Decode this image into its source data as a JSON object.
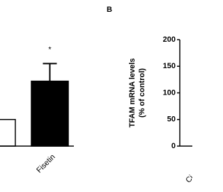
{
  "chart_data": [
    {
      "type": "bar",
      "categories": [
        null,
        "Fisetin"
      ],
      "values": [
        50,
        122
      ],
      "errors": [
        null,
        33
      ],
      "colors": [
        "#ffffff",
        "#000000"
      ],
      "ylim": [
        0,
        200
      ],
      "annotations": [
        null,
        "*"
      ]
    },
    {
      "type": "bar",
      "title": "B",
      "ylabel": [
        "TFAM mRNA levels",
        "(% of control)"
      ],
      "categories": [
        "Ci"
      ],
      "values": [
        null
      ],
      "ylim": [
        0,
        200
      ],
      "yticks": [
        0,
        50,
        100,
        150,
        200
      ]
    }
  ]
}
